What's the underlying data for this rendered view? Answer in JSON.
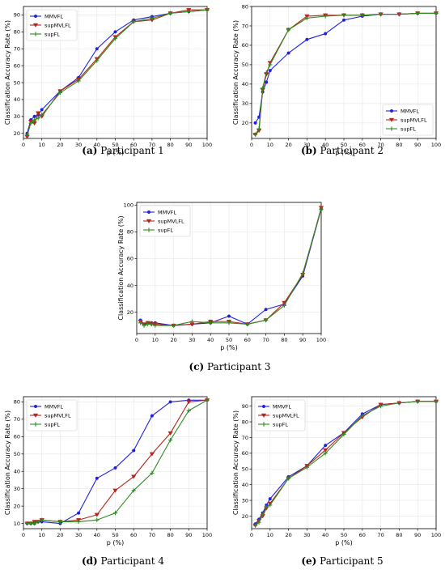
{
  "colors": {
    "MMVFL": "#1f1fdc",
    "supMVLFL": "#b8231a",
    "supFL": "#2e8a1e"
  },
  "chart_data": [
    {
      "type": "line",
      "caption_letter": "(a)",
      "caption_text": "Participant 1",
      "xlabel": "p (%)",
      "ylabel": "Classification Accuracy Rate (%)",
      "xlim": [
        0,
        100
      ],
      "ylim": [
        17,
        95
      ],
      "xticks": [
        0,
        10,
        20,
        30,
        40,
        50,
        60,
        70,
        80,
        90,
        100
      ],
      "yticks": [
        20,
        30,
        40,
        50,
        60,
        70,
        80,
        90
      ],
      "legend": "top-left",
      "series": [
        {
          "name": "MMVFL",
          "x": [
            2,
            4,
            6,
            8,
            10,
            20,
            30,
            40,
            50,
            60,
            70,
            80,
            90,
            100
          ],
          "values": [
            20,
            28,
            30,
            31,
            34,
            45,
            53,
            70,
            80,
            87,
            89,
            91,
            92,
            93
          ]
        },
        {
          "name": "supMVLFL",
          "x": [
            2,
            4,
            6,
            8,
            10,
            20,
            30,
            40,
            50,
            60,
            70,
            80,
            90,
            100
          ],
          "values": [
            18,
            27,
            26,
            32,
            30,
            45,
            52,
            64,
            77,
            86,
            87,
            91,
            93,
            93
          ]
        },
        {
          "name": "supFL",
          "x": [
            2,
            4,
            6,
            8,
            10,
            20,
            30,
            40,
            50,
            60,
            70,
            80,
            90,
            100
          ],
          "values": [
            19,
            26,
            28,
            29,
            31,
            44,
            51,
            63,
            76,
            86,
            88,
            91,
            92,
            93
          ]
        }
      ]
    },
    {
      "type": "line",
      "caption_letter": "(b)",
      "caption_text": "Participant 2",
      "xlabel": "p (%)",
      "ylabel": "Classification Accuracy Rate (%)",
      "xlim": [
        0,
        100
      ],
      "ylim": [
        12,
        80
      ],
      "xticks": [
        0,
        10,
        20,
        30,
        40,
        50,
        60,
        70,
        80,
        90,
        100
      ],
      "yticks": [
        20,
        30,
        40,
        50,
        60,
        70,
        80
      ],
      "legend": "bottom-right",
      "series": [
        {
          "name": "MMVFL",
          "x": [
            2,
            4,
            6,
            8,
            10,
            20,
            30,
            40,
            50,
            60,
            70,
            80,
            90,
            100
          ],
          "values": [
            20,
            23,
            36,
            41,
            47,
            56,
            63,
            66,
            73,
            75,
            76,
            76,
            76.5,
            76.5
          ]
        },
        {
          "name": "supMVLFL",
          "x": [
            2,
            4,
            6,
            8,
            10,
            20,
            30,
            40,
            50,
            60,
            70,
            80,
            90,
            100
          ],
          "values": [
            14,
            16,
            37,
            45,
            51,
            68,
            75,
            75.5,
            75.5,
            75.5,
            76,
            76,
            76.5,
            76.5
          ]
        },
        {
          "name": "supFL",
          "x": [
            2,
            4,
            6,
            8,
            10,
            20,
            30,
            40,
            50,
            60,
            70,
            80,
            90,
            100
          ],
          "values": [
            14,
            17,
            38,
            46,
            50,
            68,
            74,
            75,
            75.5,
            75.5,
            76,
            76,
            76.5,
            76.5
          ]
        }
      ]
    },
    {
      "type": "line",
      "caption_letter": "(c)",
      "caption_text": "Participant 3",
      "xlabel": "p (%)",
      "ylabel": "Classification Accuracy Rate (%)",
      "xlim": [
        0,
        100
      ],
      "ylim": [
        4,
        102
      ],
      "xticks": [
        0,
        10,
        20,
        30,
        40,
        50,
        60,
        70,
        80,
        90,
        100
      ],
      "yticks": [
        20,
        40,
        60,
        80,
        100
      ],
      "legend": "top-left",
      "series": [
        {
          "name": "MMVFL",
          "x": [
            2,
            4,
            6,
            8,
            10,
            20,
            30,
            40,
            50,
            60,
            70,
            80,
            90,
            100
          ],
          "values": [
            14,
            11,
            12,
            12,
            12,
            10,
            11,
            12,
            17,
            11,
            22,
            26,
            47,
            97
          ]
        },
        {
          "name": "supMVLFL",
          "x": [
            2,
            4,
            6,
            8,
            10,
            20,
            30,
            40,
            50,
            60,
            70,
            80,
            90,
            100
          ],
          "values": [
            13,
            11,
            12,
            11,
            11,
            10,
            11,
            13,
            13,
            11,
            14,
            27,
            48,
            98
          ]
        },
        {
          "name": "supFL",
          "x": [
            2,
            4,
            6,
            8,
            10,
            20,
            30,
            40,
            50,
            60,
            70,
            80,
            90,
            100
          ],
          "values": [
            12,
            10,
            11,
            11,
            10,
            10,
            13,
            12,
            12,
            11,
            14,
            25,
            49,
            97
          ]
        }
      ]
    },
    {
      "type": "line",
      "caption_letter": "(d)",
      "caption_text": "Participant 4",
      "xlabel": "p (%)",
      "ylabel": "Classification Accuracy Rate (%)",
      "xlim": [
        0,
        100
      ],
      "ylim": [
        7,
        83
      ],
      "xticks": [
        0,
        10,
        20,
        30,
        40,
        50,
        60,
        70,
        80,
        90,
        100
      ],
      "yticks": [
        10,
        20,
        30,
        40,
        50,
        60,
        70,
        80
      ],
      "legend": "top-left",
      "series": [
        {
          "name": "MMVFL",
          "x": [
            2,
            4,
            6,
            8,
            10,
            20,
            30,
            40,
            50,
            60,
            70,
            80,
            90,
            100
          ],
          "values": [
            10,
            10,
            10,
            11,
            11,
            10,
            16,
            36,
            42,
            52,
            72,
            80,
            81,
            81
          ]
        },
        {
          "name": "supMVLFL",
          "x": [
            2,
            4,
            6,
            8,
            10,
            20,
            30,
            40,
            50,
            60,
            70,
            80,
            90,
            100
          ],
          "values": [
            10,
            10,
            11,
            11,
            12,
            11,
            12,
            15,
            29,
            37,
            50,
            62,
            80,
            81
          ]
        },
        {
          "name": "supFL",
          "x": [
            2,
            4,
            6,
            8,
            10,
            20,
            30,
            40,
            50,
            60,
            70,
            80,
            90,
            100
          ],
          "values": [
            10,
            10,
            10,
            11,
            12,
            11,
            11,
            12,
            16,
            29,
            39,
            58,
            75,
            81
          ]
        }
      ]
    },
    {
      "type": "line",
      "caption_letter": "(e)",
      "caption_text": "Participant 5",
      "xlabel": "p (%)",
      "ylabel": "Classification Accuracy Rate (%)",
      "xlim": [
        0,
        100
      ],
      "ylim": [
        12,
        96
      ],
      "xticks": [
        0,
        10,
        20,
        30,
        40,
        50,
        60,
        70,
        80,
        90,
        100
      ],
      "yticks": [
        20,
        30,
        40,
        50,
        60,
        70,
        80,
        90
      ],
      "legend": "top-left",
      "series": [
        {
          "name": "MMVFL",
          "x": [
            2,
            4,
            6,
            8,
            10,
            20,
            30,
            40,
            50,
            60,
            70,
            80,
            90,
            100
          ],
          "values": [
            15,
            18,
            22,
            27,
            31,
            45,
            52,
            65,
            73,
            85,
            91,
            92,
            93,
            93
          ]
        },
        {
          "name": "supMVLFL",
          "x": [
            2,
            4,
            6,
            8,
            10,
            20,
            30,
            40,
            50,
            60,
            70,
            80,
            90,
            100
          ],
          "values": [
            14,
            17,
            20,
            25,
            28,
            44,
            52,
            62,
            73,
            83,
            91,
            92,
            93,
            93
          ]
        },
        {
          "name": "supFL",
          "x": [
            2,
            4,
            6,
            8,
            10,
            20,
            30,
            40,
            50,
            60,
            70,
            80,
            90,
            100
          ],
          "values": [
            14,
            16,
            21,
            26,
            27,
            44,
            51,
            60,
            72,
            84,
            90,
            92,
            93,
            93
          ]
        }
      ]
    }
  ]
}
